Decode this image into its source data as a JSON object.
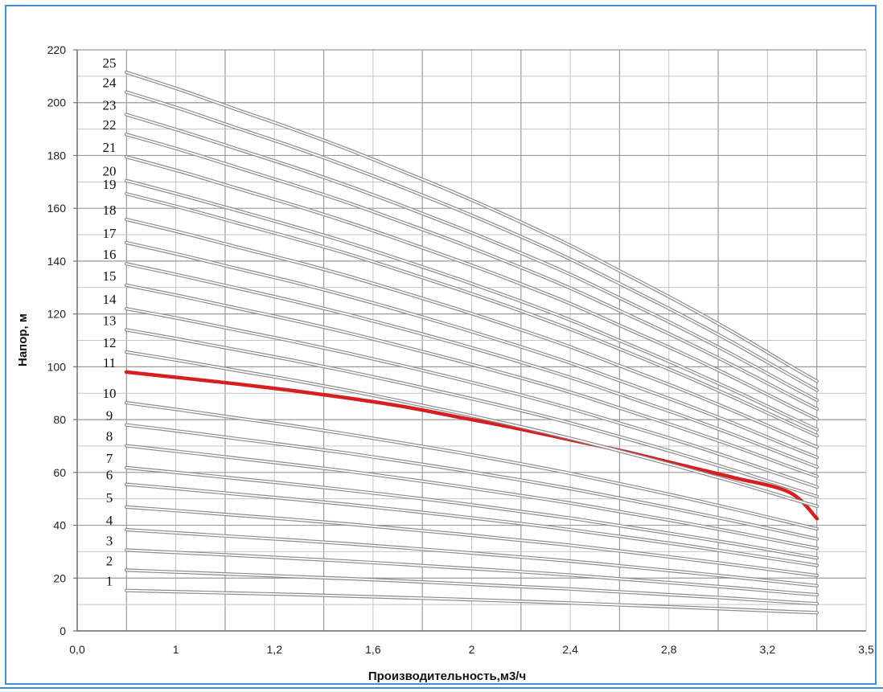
{
  "chart_data": {
    "type": "line",
    "title": "",
    "xlabel": "Производительность,м3/ч",
    "ylabel": "Напор, м",
    "x_tick_labels": [
      "0,0",
      "1",
      "1,2",
      "1,6",
      "2",
      "2,4",
      "2,8",
      "3,2",
      "3,5"
    ],
    "y_ticks": [
      0,
      20,
      40,
      60,
      80,
      100,
      120,
      140,
      160,
      180,
      200,
      220
    ],
    "ylim": [
      0,
      220
    ],
    "grid": true,
    "x": [
      1.0,
      1.2,
      1.4,
      1.6,
      1.8,
      2.0,
      2.2,
      2.4,
      2.6,
      2.8,
      3.0,
      3.2,
      3.4,
      3.5
    ],
    "highlight_color": "#d71f1f",
    "curve_color": "#8c8c8c",
    "series": [
      {
        "name": "1",
        "values": [
          15.3,
          14.8,
          14.3,
          13.8,
          13.2,
          12.6,
          12.0,
          11.3,
          10.6,
          9.8,
          9.0,
          8.2,
          7.3,
          6.9
        ]
      },
      {
        "name": "2",
        "values": [
          23.0,
          22.2,
          21.4,
          20.6,
          19.8,
          18.9,
          17.9,
          16.9,
          15.9,
          14.7,
          13.5,
          12.3,
          10.9,
          10.3
        ]
      },
      {
        "name": "3",
        "values": [
          30.6,
          29.6,
          28.6,
          27.5,
          26.4,
          25.2,
          23.9,
          22.6,
          21.2,
          19.6,
          18.0,
          16.3,
          14.5,
          13.7
        ]
      },
      {
        "name": "4",
        "values": [
          38.3,
          37.0,
          35.7,
          34.4,
          33.0,
          31.5,
          29.9,
          28.2,
          26.5,
          24.5,
          22.5,
          20.4,
          18.2,
          17.1
        ]
      },
      {
        "name": "5",
        "values": [
          46.9,
          45.4,
          43.8,
          42.2,
          40.5,
          38.6,
          36.7,
          34.6,
          32.5,
          30.1,
          27.6,
          25.0,
          22.3,
          21.0
        ]
      },
      {
        "name": "6",
        "values": [
          55.5,
          53.7,
          51.8,
          49.9,
          47.9,
          45.7,
          43.4,
          41.0,
          38.4,
          35.6,
          32.7,
          29.6,
          26.4,
          24.8
        ]
      },
      {
        "name": "7",
        "values": [
          61.8,
          59.8,
          57.7,
          55.6,
          53.3,
          50.9,
          48.4,
          45.6,
          42.8,
          39.6,
          36.4,
          33.0,
          29.4,
          27.6
        ]
      },
      {
        "name": "8",
        "values": [
          70.1,
          67.8,
          65.4,
          63.0,
          60.5,
          57.7,
          54.8,
          51.7,
          48.5,
          44.9,
          41.3,
          37.4,
          33.3,
          31.3
        ]
      },
      {
        "name": "9",
        "values": [
          78.0,
          75.5,
          72.8,
          70.1,
          67.3,
          64.2,
          61.0,
          57.6,
          54.0,
          50.0,
          45.9,
          41.6,
          37.1,
          34.8
        ]
      },
      {
        "name": "10",
        "values": [
          86.4,
          83.6,
          80.6,
          77.7,
          74.5,
          71.1,
          67.6,
          63.8,
          59.8,
          55.4,
          50.9,
          46.1,
          41.1,
          38.6
        ]
      },
      {
        "name": "11",
        "values": [
          98.0,
          95.8,
          93.5,
          91.0,
          88.2,
          85.0,
          81.0,
          77.0,
          72.5,
          68.0,
          63.0,
          58.0,
          52.5,
          42.5
        ]
      },
      {
        "name": "12",
        "values": [
          105.6,
          102.2,
          98.6,
          95.0,
          91.1,
          86.9,
          82.6,
          78.0,
          73.1,
          67.7,
          62.2,
          56.4,
          50.2,
          47.2
        ]
      },
      {
        "name": "13",
        "values": [
          114.0,
          110.3,
          106.4,
          102.5,
          98.3,
          93.8,
          89.1,
          84.2,
          78.9,
          73.1,
          67.1,
          60.8,
          54.2,
          50.9
        ]
      },
      {
        "name": "14",
        "values": [
          122.0,
          118.1,
          113.9,
          109.7,
          105.2,
          100.4,
          95.4,
          90.1,
          84.4,
          78.2,
          71.9,
          65.1,
          58.0,
          54.5
        ]
      },
      {
        "name": "15",
        "values": [
          130.9,
          126.7,
          122.2,
          117.7,
          112.9,
          107.7,
          102.3,
          96.6,
          90.6,
          83.9,
          77.1,
          69.9,
          62.2,
          58.5
        ]
      },
      {
        "name": "16",
        "values": [
          139.0,
          134.5,
          129.8,
          125.0,
          119.9,
          114.4,
          108.7,
          102.6,
          96.2,
          89.1,
          81.9,
          74.2,
          66.1,
          62.1
        ]
      },
      {
        "name": "17",
        "values": [
          147.0,
          142.3,
          137.2,
          132.2,
          126.8,
          121.0,
          114.9,
          108.5,
          101.7,
          94.2,
          86.6,
          78.5,
          69.9,
          65.7
        ]
      },
      {
        "name": "18",
        "values": [
          155.8,
          150.8,
          145.4,
          140.1,
          134.4,
          128.2,
          121.8,
          115.0,
          107.8,
          99.8,
          91.8,
          83.2,
          74.1,
          69.6
        ]
      },
      {
        "name": "19",
        "values": [
          165.5,
          160.2,
          154.5,
          148.8,
          142.8,
          136.2,
          129.4,
          122.2,
          114.5,
          106.1,
          97.5,
          88.3,
          78.7,
          73.9
        ]
      },
      {
        "name": "20",
        "values": [
          170.5,
          165.0,
          159.2,
          153.3,
          147.1,
          140.3,
          133.3,
          125.9,
          118.0,
          109.3,
          100.4,
          91.0,
          81.1,
          76.2
        ]
      },
      {
        "name": "21",
        "values": [
          179.5,
          173.8,
          167.6,
          161.4,
          154.8,
          147.7,
          140.3,
          132.5,
          124.2,
          115.0,
          105.7,
          95.8,
          85.3,
          80.2
        ]
      },
      {
        "name": "22",
        "values": [
          188.0,
          182.0,
          175.5,
          169.0,
          162.2,
          154.7,
          147.0,
          138.8,
          130.1,
          120.5,
          110.7,
          100.3,
          89.4,
          84.0
        ]
      },
      {
        "name": "23",
        "values": [
          195.5,
          189.2,
          182.5,
          175.8,
          168.6,
          160.9,
          152.8,
          144.3,
          135.3,
          125.3,
          115.1,
          104.3,
          92.9,
          87.3
        ]
      },
      {
        "name": "24",
        "values": [
          204.0,
          197.5,
          190.4,
          183.4,
          175.9,
          167.9,
          159.5,
          150.6,
          141.1,
          130.7,
          120.1,
          108.9,
          97.0,
          91.1
        ]
      },
      {
        "name": "25",
        "values": [
          211.5,
          204.7,
          197.4,
          190.1,
          182.4,
          174.0,
          165.4,
          156.1,
          146.3,
          135.5,
          124.5,
          112.9,
          100.5,
          94.5
        ]
      }
    ]
  }
}
